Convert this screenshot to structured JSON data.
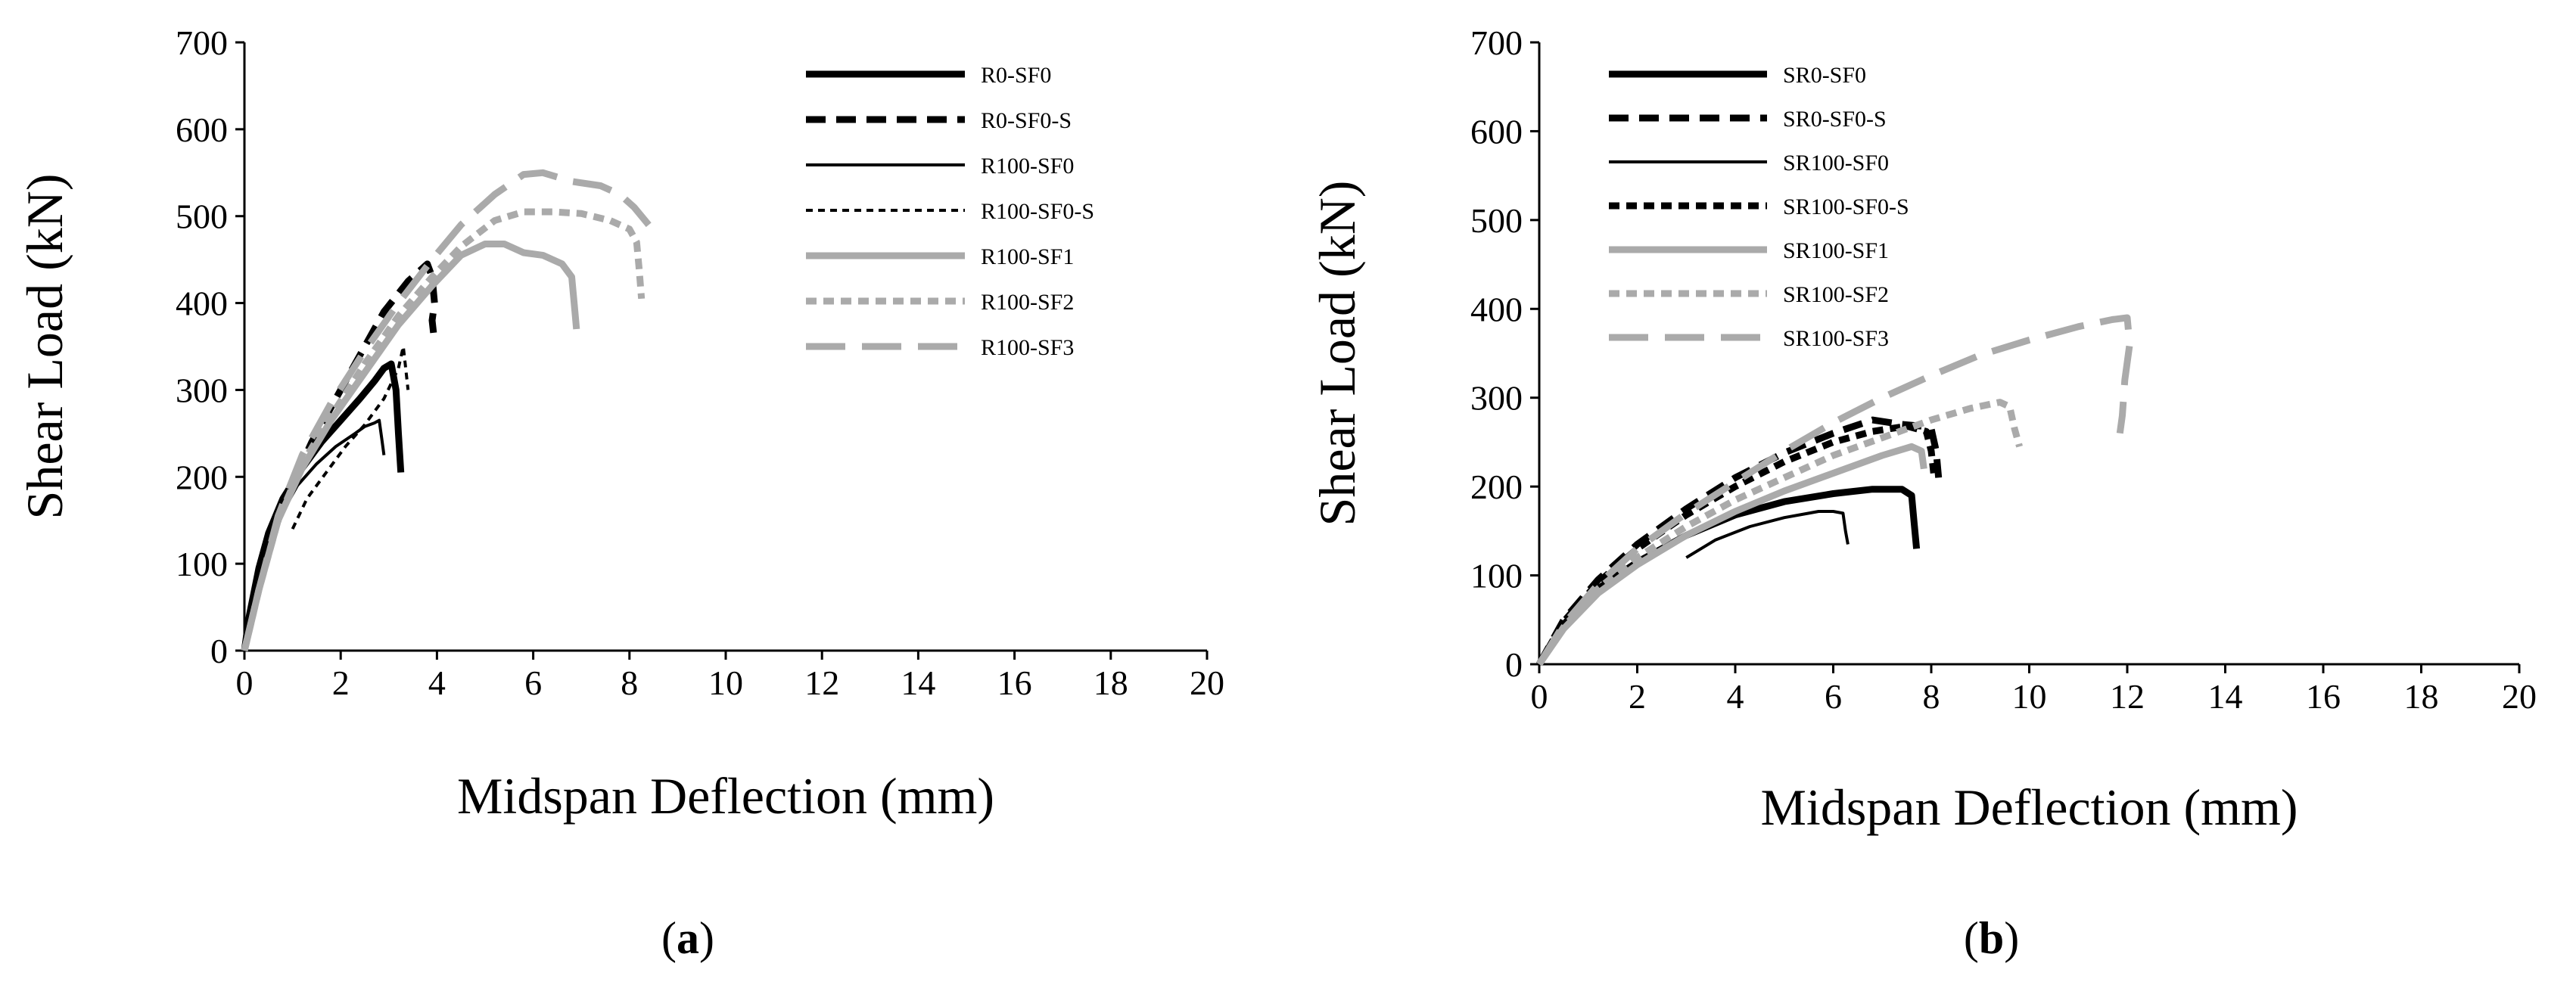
{
  "chart_data": [
    {
      "type": "line",
      "panel_label": "(a)",
      "panel_letter": "a",
      "xlabel": "Midspan Deflection (mm)",
      "ylabel": "Shear Load (kN)",
      "xlim": [
        0,
        20
      ],
      "ylim": [
        0,
        700
      ],
      "xticks": [
        0,
        2,
        4,
        6,
        8,
        10,
        12,
        14,
        16,
        18,
        20
      ],
      "yticks": [
        0,
        100,
        200,
        300,
        400,
        500,
        600,
        700
      ],
      "grid": false,
      "legend_position": "top-right",
      "series": [
        {
          "name": "R0-SF0",
          "color": "#000000",
          "style": "solid",
          "weight": "thick",
          "points": [
            [
              0,
              0
            ],
            [
              0.1,
              40
            ],
            [
              0.3,
              95
            ],
            [
              0.5,
              135
            ],
            [
              0.8,
              175
            ],
            [
              1.2,
              210
            ],
            [
              1.6,
              240
            ],
            [
              2.0,
              265
            ],
            [
              2.4,
              290
            ],
            [
              2.7,
              310
            ],
            [
              2.9,
              325
            ],
            [
              3.05,
              330
            ],
            [
              3.15,
              300
            ],
            [
              3.2,
              250
            ],
            [
              3.25,
              205
            ]
          ]
        },
        {
          "name": "R0-SF0-S",
          "color": "#000000",
          "style": "dash",
          "weight": "thick",
          "points": [
            [
              0,
              0
            ],
            [
              0.2,
              60
            ],
            [
              0.5,
              120
            ],
            [
              0.9,
              180
            ],
            [
              1.4,
              240
            ],
            [
              1.9,
              290
            ],
            [
              2.4,
              340
            ],
            [
              2.9,
              390
            ],
            [
              3.4,
              425
            ],
            [
              3.8,
              445
            ],
            [
              3.9,
              430
            ],
            [
              3.95,
              400
            ],
            [
              3.9,
              380
            ],
            [
              3.95,
              355
            ]
          ]
        },
        {
          "name": "R100-SF0",
          "color": "#000000",
          "style": "solid",
          "weight": "thin",
          "points": [
            [
              0,
              0
            ],
            [
              0.2,
              55
            ],
            [
              0.5,
              110
            ],
            [
              0.8,
              160
            ],
            [
              1.1,
              190
            ],
            [
              1.5,
              215
            ],
            [
              1.9,
              235
            ],
            [
              2.3,
              250
            ],
            [
              2.5,
              258
            ],
            [
              2.7,
              262
            ],
            [
              2.8,
              265
            ],
            [
              2.85,
              245
            ],
            [
              2.9,
              225
            ]
          ]
        },
        {
          "name": "R100-SF0-S",
          "color": "#000000",
          "style": "shortdash",
          "weight": "thin",
          "points": [
            [
              1.0,
              140
            ],
            [
              1.3,
              175
            ],
            [
              1.7,
              205
            ],
            [
              2.1,
              235
            ],
            [
              2.5,
              260
            ],
            [
              2.9,
              290
            ],
            [
              3.2,
              325
            ],
            [
              3.3,
              350
            ],
            [
              3.35,
              325
            ],
            [
              3.4,
              300
            ]
          ]
        },
        {
          "name": "R100-SF1",
          "color": "#aaaaaa",
          "style": "solid",
          "weight": "thick",
          "points": [
            [
              0,
              0
            ],
            [
              0.3,
              70
            ],
            [
              0.7,
              150
            ],
            [
              1.2,
              210
            ],
            [
              1.8,
              265
            ],
            [
              2.5,
              320
            ],
            [
              3.2,
              375
            ],
            [
              3.9,
              420
            ],
            [
              4.5,
              455
            ],
            [
              5.0,
              468
            ],
            [
              5.4,
              468
            ],
            [
              5.8,
              458
            ],
            [
              6.2,
              455
            ],
            [
              6.6,
              445
            ],
            [
              6.8,
              430
            ],
            [
              6.85,
              400
            ],
            [
              6.9,
              370
            ]
          ]
        },
        {
          "name": "R100-SF2",
          "color": "#aaaaaa",
          "style": "shortdash",
          "weight": "thick",
          "points": [
            [
              0,
              0
            ],
            [
              0.3,
              70
            ],
            [
              0.7,
              150
            ],
            [
              1.2,
              215
            ],
            [
              1.8,
              270
            ],
            [
              2.5,
              330
            ],
            [
              3.2,
              385
            ],
            [
              3.9,
              430
            ],
            [
              4.5,
              465
            ],
            [
              5.2,
              495
            ],
            [
              5.8,
              505
            ],
            [
              6.4,
              505
            ],
            [
              7.0,
              503
            ],
            [
              7.6,
              495
            ],
            [
              8.0,
              485
            ],
            [
              8.15,
              470
            ],
            [
              8.2,
              440
            ],
            [
              8.25,
              405
            ]
          ]
        },
        {
          "name": "R100-SF3",
          "color": "#aaaaaa",
          "style": "longdash",
          "weight": "thick",
          "points": [
            [
              0,
              0
            ],
            [
              0.3,
              70
            ],
            [
              0.7,
              155
            ],
            [
              1.2,
              225
            ],
            [
              1.8,
              285
            ],
            [
              2.5,
              345
            ],
            [
              3.2,
              400
            ],
            [
              3.9,
              450
            ],
            [
              4.5,
              490
            ],
            [
              5.2,
              525
            ],
            [
              5.8,
              548
            ],
            [
              6.2,
              550
            ],
            [
              6.8,
              540
            ],
            [
              7.4,
              535
            ],
            [
              7.8,
              525
            ],
            [
              8.1,
              510
            ],
            [
              8.4,
              490
            ]
          ]
        }
      ]
    },
    {
      "type": "line",
      "panel_label": "(b)",
      "panel_letter": "b",
      "xlabel": "Midspan Deflection (mm)",
      "ylabel": "Shear Load (kN)",
      "xlim": [
        0,
        20
      ],
      "ylim": [
        0,
        700
      ],
      "xticks": [
        0,
        2,
        4,
        6,
        8,
        10,
        12,
        14,
        16,
        18,
        20
      ],
      "yticks": [
        0,
        100,
        200,
        300,
        400,
        500,
        600,
        700
      ],
      "grid": false,
      "legend_position": "top-left",
      "series": [
        {
          "name": "SR0-SF0",
          "color": "#000000",
          "style": "solid",
          "weight": "thick",
          "points": [
            [
              0,
              0
            ],
            [
              0.5,
              45
            ],
            [
              1.2,
              85
            ],
            [
              2.0,
              115
            ],
            [
              3.0,
              145
            ],
            [
              4.0,
              168
            ],
            [
              5.0,
              183
            ],
            [
              6.0,
              192
            ],
            [
              6.8,
              197
            ],
            [
              7.4,
              197
            ],
            [
              7.6,
              190
            ],
            [
              7.65,
              160
            ],
            [
              7.7,
              130
            ]
          ]
        },
        {
          "name": "SR0-SF0-S",
          "color": "#000000",
          "style": "dash",
          "weight": "thick",
          "points": [
            [
              0,
              0
            ],
            [
              0.5,
              50
            ],
            [
              1.2,
              95
            ],
            [
              2.0,
              135
            ],
            [
              3.0,
              175
            ],
            [
              4.0,
              210
            ],
            [
              5.0,
              238
            ],
            [
              6.0,
              260
            ],
            [
              6.8,
              275
            ],
            [
              7.4,
              270
            ],
            [
              7.8,
              268
            ],
            [
              8.0,
              265
            ],
            [
              8.1,
              240
            ],
            [
              8.15,
              210
            ]
          ]
        },
        {
          "name": "SR100-SF0",
          "color": "#000000",
          "style": "solid",
          "weight": "thin",
          "points": [
            [
              3.0,
              120
            ],
            [
              3.6,
              140
            ],
            [
              4.3,
              155
            ],
            [
              5.0,
              165
            ],
            [
              5.5,
              170
            ],
            [
              5.7,
              172
            ],
            [
              6.0,
              172
            ],
            [
              6.2,
              170
            ],
            [
              6.25,
              150
            ],
            [
              6.3,
              135
            ]
          ]
        },
        {
          "name": "SR100-SF0-S",
          "color": "#000000",
          "style": "shortdash",
          "weight": "thick",
          "points": [
            [
              0,
              0
            ],
            [
              0.5,
              48
            ],
            [
              1.2,
              92
            ],
            [
              2.0,
              130
            ],
            [
              3.0,
              168
            ],
            [
              4.0,
              200
            ],
            [
              5.0,
              228
            ],
            [
              6.0,
              250
            ],
            [
              6.8,
              262
            ],
            [
              7.5,
              268
            ],
            [
              7.9,
              262
            ],
            [
              8.0,
              240
            ],
            [
              8.05,
              215
            ]
          ]
        },
        {
          "name": "SR100-SF1",
          "color": "#aaaaaa",
          "style": "solid",
          "weight": "thick",
          "points": [
            [
              0,
              0
            ],
            [
              0.5,
              40
            ],
            [
              1.2,
              80
            ],
            [
              2.0,
              112
            ],
            [
              3.0,
              145
            ],
            [
              4.0,
              172
            ],
            [
              5.0,
              195
            ],
            [
              6.0,
              215
            ],
            [
              7.0,
              235
            ],
            [
              7.6,
              245
            ],
            [
              7.8,
              240
            ],
            [
              7.85,
              220
            ]
          ]
        },
        {
          "name": "SR100-SF2",
          "color": "#aaaaaa",
          "style": "shortdash",
          "weight": "thick",
          "points": [
            [
              0,
              0
            ],
            [
              0.5,
              42
            ],
            [
              1.2,
              85
            ],
            [
              2.0,
              120
            ],
            [
              3.0,
              155
            ],
            [
              4.0,
              185
            ],
            [
              5.0,
              210
            ],
            [
              6.0,
              235
            ],
            [
              7.0,
              255
            ],
            [
              8.0,
              275
            ],
            [
              8.8,
              288
            ],
            [
              9.4,
              295
            ],
            [
              9.6,
              290
            ],
            [
              9.7,
              265
            ],
            [
              9.8,
              245
            ]
          ]
        },
        {
          "name": "SR100-SF3",
          "color": "#aaaaaa",
          "style": "longdash",
          "weight": "thick",
          "points": [
            [
              0,
              0
            ],
            [
              0.5,
              45
            ],
            [
              1.2,
              90
            ],
            [
              2.0,
              130
            ],
            [
              3.0,
              170
            ],
            [
              4.0,
              205
            ],
            [
              5.0,
              240
            ],
            [
              6.0,
              272
            ],
            [
              7.0,
              300
            ],
            [
              8.0,
              325
            ],
            [
              9.0,
              348
            ],
            [
              10.0,
              365
            ],
            [
              11.0,
              380
            ],
            [
              11.7,
              388
            ],
            [
              12.0,
              390
            ],
            [
              12.05,
              360
            ],
            [
              11.95,
              320
            ],
            [
              11.9,
              280
            ],
            [
              11.85,
              260
            ]
          ]
        }
      ]
    }
  ]
}
